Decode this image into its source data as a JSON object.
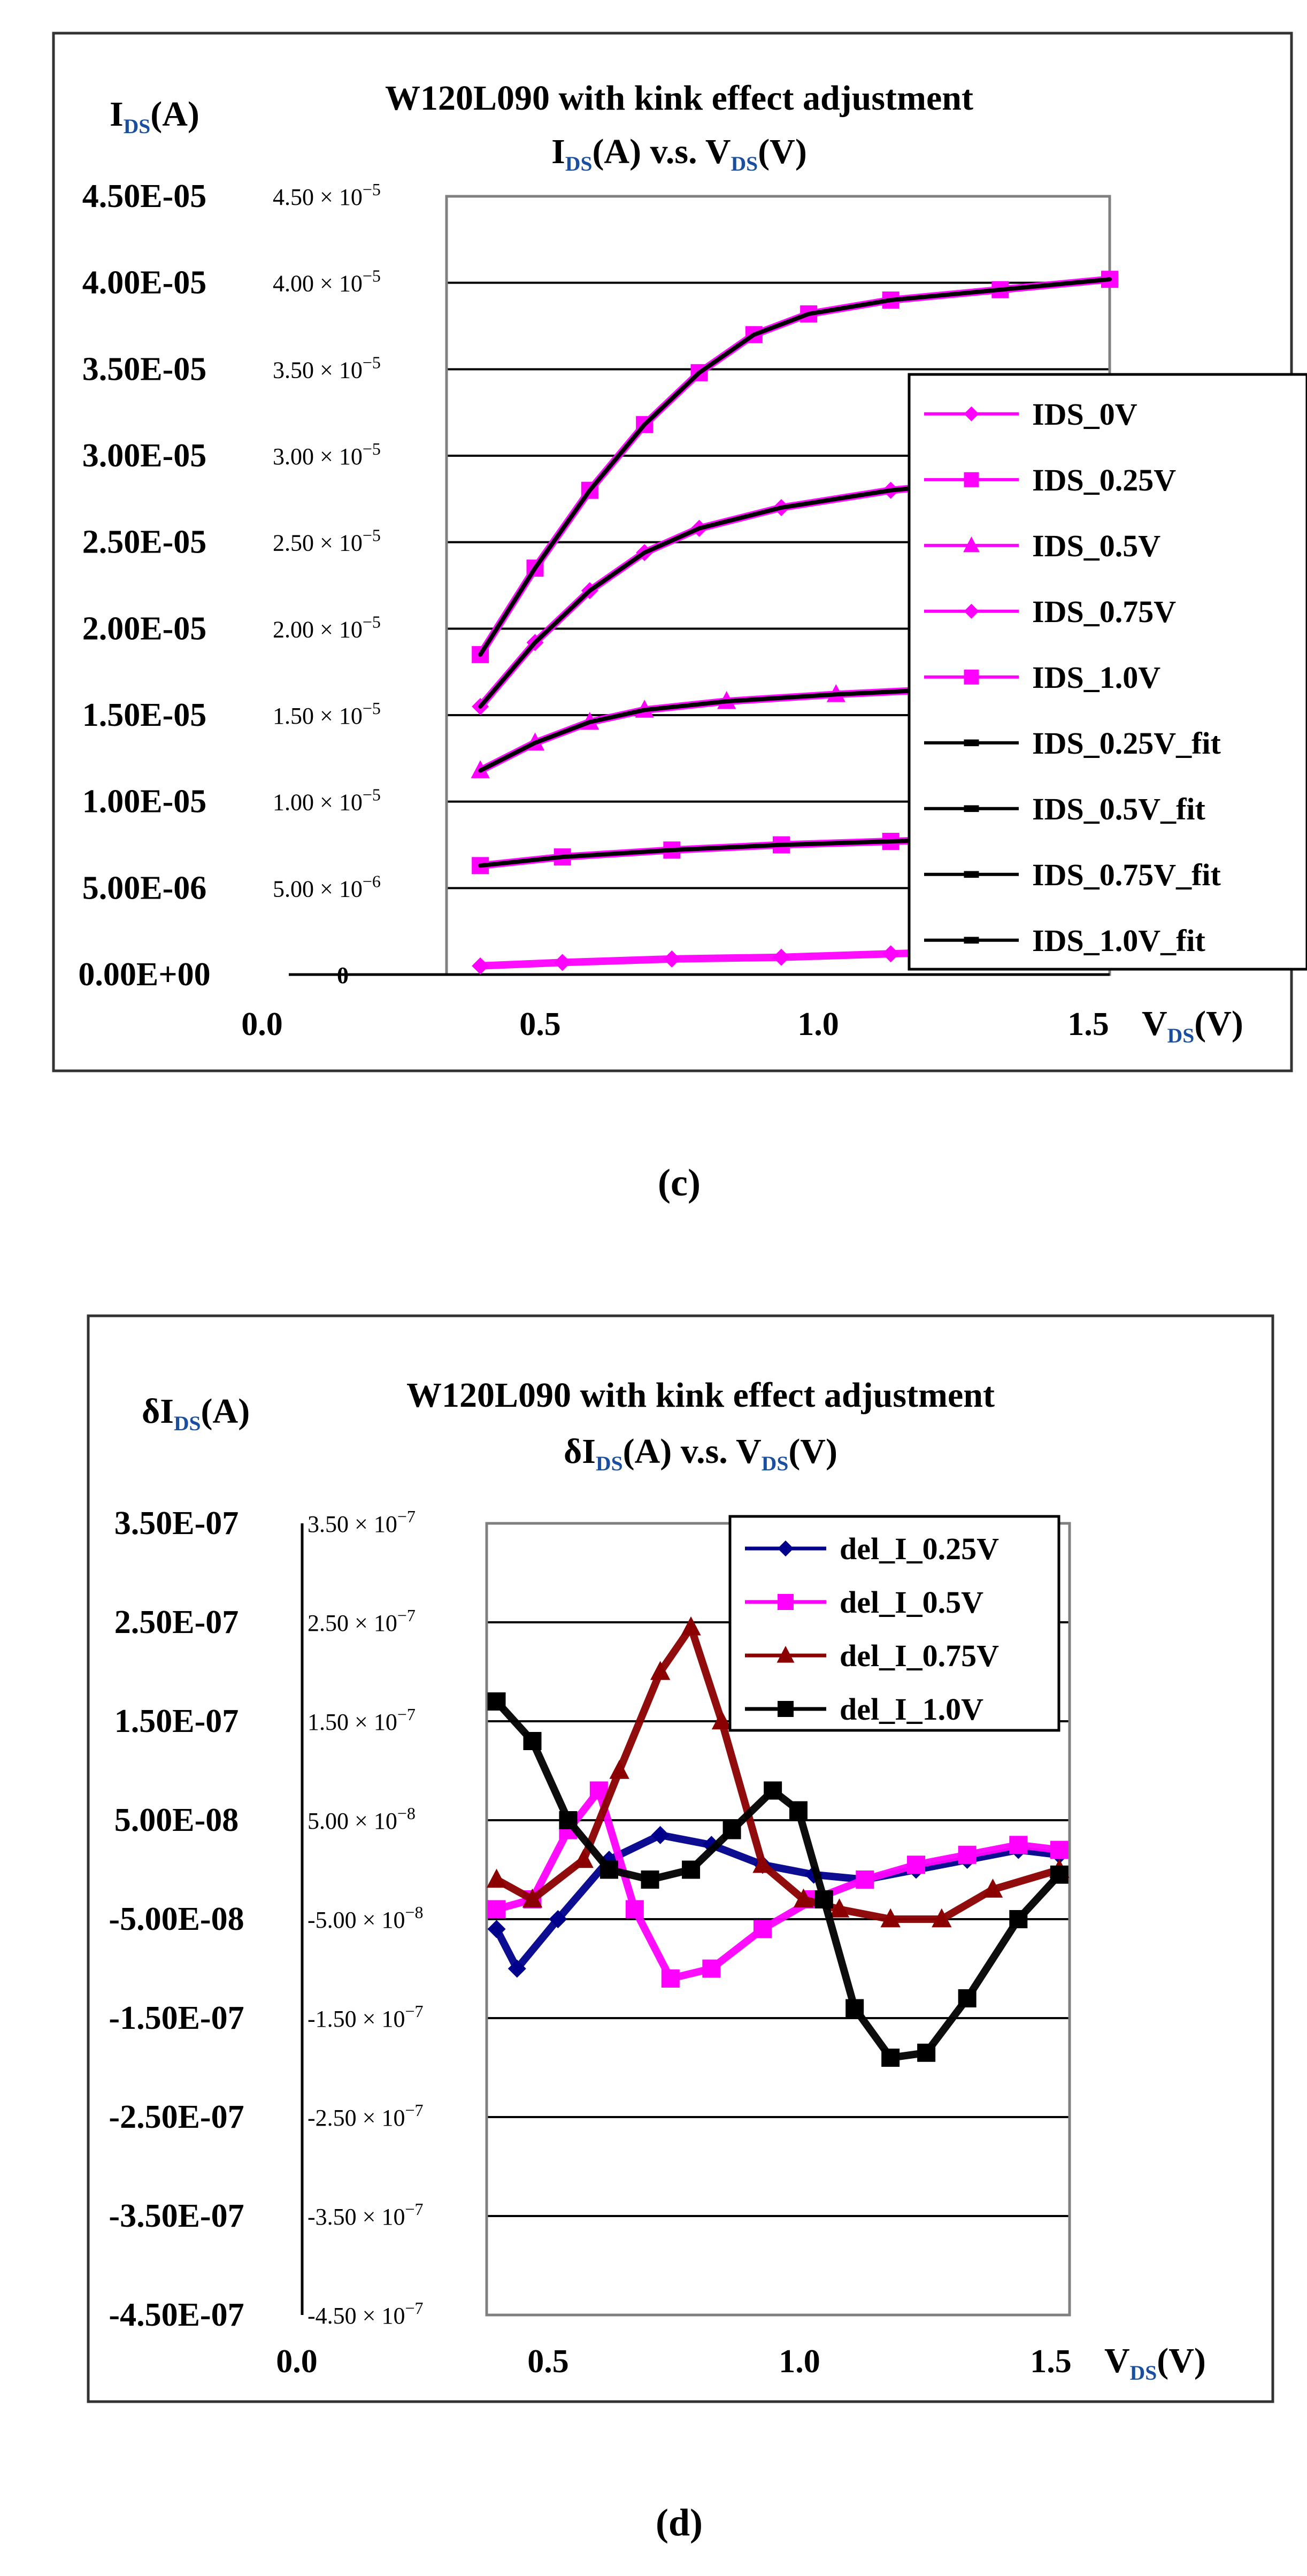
{
  "chart_data": [
    {
      "type": "line",
      "caption": "(c)",
      "title": "W120L090 with kink effect adjustment",
      "subtitle": {
        "a": "I",
        "a_sub": "DS",
        "b": "(A) v.s. V",
        "b_sub": "DS",
        "c": "(V)"
      },
      "ylabel": {
        "main": "I",
        "sub": "DS",
        "rest": "(A)"
      },
      "xlabel": {
        "main": "V",
        "sub": "DS",
        "rest": "(V)"
      },
      "xlim": [
        0,
        1.5
      ],
      "ylim": [
        0,
        4.5e-05
      ],
      "x_ticks": [
        "0.0",
        "0.5",
        "1.0",
        "1.5"
      ],
      "x_tick_values": [
        0,
        0.5,
        1.0,
        1.5
      ],
      "outer_y_ticks": [
        "4.50E-05",
        "4.00E-05",
        "3.50E-05",
        "3.00E-05",
        "2.50E-05",
        "2.00E-05",
        "1.50E-05",
        "1.00E-05",
        "5.00E-06",
        "0.00E+00"
      ],
      "inner_y_ticks": [
        {
          "m": "4.50",
          "e": "−5",
          "v": 4.5e-05
        },
        {
          "m": "4.00",
          "e": "−5",
          "v": 4e-05
        },
        {
          "m": "3.50",
          "e": "−5",
          "v": 3.5e-05
        },
        {
          "m": "3.00",
          "e": "−5",
          "v": 3e-05
        },
        {
          "m": "2.50",
          "e": "−5",
          "v": 2.5e-05
        },
        {
          "m": "2.00",
          "e": "−5",
          "v": 2e-05
        },
        {
          "m": "1.50",
          "e": "−5",
          "v": 1.5e-05
        },
        {
          "m": "1.00",
          "e": "−5",
          "v": 1e-05
        },
        {
          "m": "5.00",
          "e": "−6",
          "v": 5e-06
        },
        {
          "m": "0",
          "e": "",
          "v": 0
        }
      ],
      "series": [
        {
          "name": "IDS_0V",
          "color": "#ff00ff",
          "marker": "diamond",
          "x": [
            0.35,
            0.5,
            0.7,
            0.9,
            1.1,
            1.3,
            1.5
          ],
          "y": [
            5e-07,
            7e-07,
            9e-07,
            1e-06,
            1.2e-06,
            1.4e-06,
            1.6e-06
          ]
        },
        {
          "name": "IDS_0.25V",
          "color": "#ff00ff",
          "marker": "square",
          "x": [
            0.35,
            0.5,
            0.7,
            0.9,
            1.1,
            1.3,
            1.5
          ],
          "y": [
            6.3e-06,
            6.8e-06,
            7.2e-06,
            7.5e-06,
            7.7e-06,
            7.9e-06,
            8.1e-06
          ]
        },
        {
          "name": "IDS_0.5V",
          "color": "#ff00ff",
          "marker": "triangle",
          "x": [
            0.35,
            0.45,
            0.55,
            0.65,
            0.8,
            1.0,
            1.2,
            1.5
          ],
          "y": [
            1.18e-05,
            1.34e-05,
            1.46e-05,
            1.53e-05,
            1.58e-05,
            1.62e-05,
            1.65e-05,
            1.68e-05
          ]
        },
        {
          "name": "IDS_0.75V",
          "color": "#ff00ff",
          "marker": "diamond",
          "x": [
            0.35,
            0.45,
            0.55,
            0.65,
            0.75,
            0.9,
            1.1,
            1.3,
            1.5
          ],
          "y": [
            1.55e-05,
            1.92e-05,
            2.22e-05,
            2.44e-05,
            2.58e-05,
            2.7e-05,
            2.8e-05,
            2.86e-05,
            2.92e-05
          ]
        },
        {
          "name": "IDS_1.0V",
          "color": "#ff00ff",
          "marker": "square",
          "x": [
            0.35,
            0.45,
            0.55,
            0.65,
            0.75,
            0.85,
            0.95,
            1.1,
            1.3,
            1.5
          ],
          "y": [
            1.85e-05,
            2.35e-05,
            2.8e-05,
            3.18e-05,
            3.48e-05,
            3.7e-05,
            3.82e-05,
            3.9e-05,
            3.96e-05,
            4.02e-05
          ]
        },
        {
          "name": "IDS_0.25V_fit",
          "color": "#000000",
          "marker": "dash",
          "x": [
            0.35,
            0.5,
            0.7,
            0.9,
            1.1,
            1.3,
            1.5
          ],
          "y": [
            6.3e-06,
            6.8e-06,
            7.2e-06,
            7.5e-06,
            7.7e-06,
            7.9e-06,
            8.1e-06
          ]
        },
        {
          "name": "IDS_0.5V_fit",
          "color": "#000000",
          "marker": "dash",
          "x": [
            0.35,
            0.45,
            0.55,
            0.65,
            0.8,
            1.0,
            1.2,
            1.5
          ],
          "y": [
            1.18e-05,
            1.34e-05,
            1.46e-05,
            1.53e-05,
            1.58e-05,
            1.62e-05,
            1.65e-05,
            1.68e-05
          ]
        },
        {
          "name": "IDS_0.75V_fit",
          "color": "#000000",
          "marker": "dash",
          "x": [
            0.35,
            0.45,
            0.55,
            0.65,
            0.75,
            0.9,
            1.1,
            1.3,
            1.5
          ],
          "y": [
            1.55e-05,
            1.92e-05,
            2.22e-05,
            2.44e-05,
            2.58e-05,
            2.7e-05,
            2.8e-05,
            2.86e-05,
            2.92e-05
          ]
        },
        {
          "name": "IDS_1.0V_fit",
          "color": "#000000",
          "marker": "dash",
          "x": [
            0.35,
            0.45,
            0.55,
            0.65,
            0.75,
            0.85,
            0.95,
            1.1,
            1.3,
            1.5
          ],
          "y": [
            1.85e-05,
            2.35e-05,
            2.8e-05,
            3.18e-05,
            3.48e-05,
            3.7e-05,
            3.82e-05,
            3.9e-05,
            3.96e-05,
            4.02e-05
          ]
        }
      ],
      "legend_position": "right"
    },
    {
      "type": "line",
      "caption": "(d)",
      "title": "W120L090 with kink effect adjustment",
      "subtitle": {
        "a": "δI",
        "a_sub": "DS",
        "b": "(A) v.s. V",
        "b_sub": "DS",
        "c": "(V)"
      },
      "ylabel": {
        "main": "δI",
        "sub": "DS",
        "rest": "(A)"
      },
      "xlabel": {
        "main": "V",
        "sub": "DS",
        "rest": "(V)"
      },
      "xlim": [
        0,
        1.5
      ],
      "ylim": [
        -4.5e-07,
        3.5e-07
      ],
      "x_ticks": [
        "0.0",
        "0.5",
        "1.0",
        "1.5"
      ],
      "x_tick_values": [
        0,
        0.5,
        1.0,
        1.5
      ],
      "outer_y_ticks": [
        "3.50E-07",
        "2.50E-07",
        "1.50E-07",
        "5.00E-08",
        "-5.00E-08",
        "-1.50E-07",
        "-2.50E-07",
        "-3.50E-07",
        "-4.50E-07"
      ],
      "inner_y_ticks": [
        {
          "m": "3.50",
          "e": "−7",
          "v": 3.5e-07
        },
        {
          "m": "2.50",
          "e": "−7",
          "v": 2.5e-07
        },
        {
          "m": "1.50",
          "e": "−7",
          "v": 1.5e-07
        },
        {
          "m": "5.00",
          "e": "−8",
          "v": 5e-08
        },
        {
          "m": "-5.00",
          "e": "−8",
          "v": -5e-08
        },
        {
          "m": "-1.50",
          "e": "−7",
          "v": -1.5e-07
        },
        {
          "m": "-2.50",
          "e": "−7",
          "v": -2.5e-07
        },
        {
          "m": "-3.50",
          "e": "−7",
          "v": -3.5e-07
        },
        {
          "m": "-4.50",
          "e": "−7",
          "v": -4.5e-07
        }
      ],
      "series": [
        {
          "name": "del_I_0.25V",
          "color": "#00008b",
          "marker": "diamond",
          "x": [
            0.38,
            0.42,
            0.5,
            0.6,
            0.7,
            0.8,
            0.9,
            1.0,
            1.1,
            1.2,
            1.3,
            1.4,
            1.48
          ],
          "y": [
            -6e-08,
            -1e-07,
            -5e-08,
            1e-08,
            3.5e-08,
            2.5e-08,
            5e-09,
            -5e-09,
            -1e-08,
            0,
            1e-08,
            2e-08,
            1.5e-08
          ]
        },
        {
          "name": "del_I_0.5V",
          "color": "#ff00ff",
          "marker": "square",
          "x": [
            0.38,
            0.45,
            0.52,
            0.58,
            0.65,
            0.72,
            0.8,
            0.9,
            1.0,
            1.1,
            1.2,
            1.3,
            1.4,
            1.48
          ],
          "y": [
            -4e-08,
            -3e-08,
            4e-08,
            8e-08,
            -4e-08,
            -1.1e-07,
            -1e-07,
            -6e-08,
            -3e-08,
            -1e-08,
            5e-09,
            1.5e-08,
            2.5e-08,
            2e-08
          ]
        },
        {
          "name": "del_I_0.75V",
          "color": "#8b0000",
          "marker": "triangle",
          "x": [
            0.38,
            0.45,
            0.55,
            0.62,
            0.7,
            0.76,
            0.82,
            0.9,
            0.98,
            1.05,
            1.15,
            1.25,
            1.35,
            1.48
          ],
          "y": [
            -1e-08,
            -3e-08,
            1e-08,
            1e-07,
            2e-07,
            2.45e-07,
            1.5e-07,
            5e-09,
            -3e-08,
            -4e-08,
            -5e-08,
            -5e-08,
            -2e-08,
            0
          ]
        },
        {
          "name": "del_I_1.0V",
          "color": "#000000",
          "marker": "square",
          "x": [
            0.38,
            0.45,
            0.52,
            0.6,
            0.68,
            0.76,
            0.84,
            0.92,
            0.97,
            1.02,
            1.08,
            1.15,
            1.22,
            1.3,
            1.4,
            1.48
          ],
          "y": [
            1.7e-07,
            1.3e-07,
            5e-08,
            0,
            -1e-08,
            0,
            4e-08,
            8e-08,
            6e-08,
            -3e-08,
            -1.4e-07,
            -1.9e-07,
            -1.85e-07,
            -1.3e-07,
            -5e-08,
            -5e-09
          ]
        }
      ],
      "legend_position": "top-right"
    }
  ]
}
